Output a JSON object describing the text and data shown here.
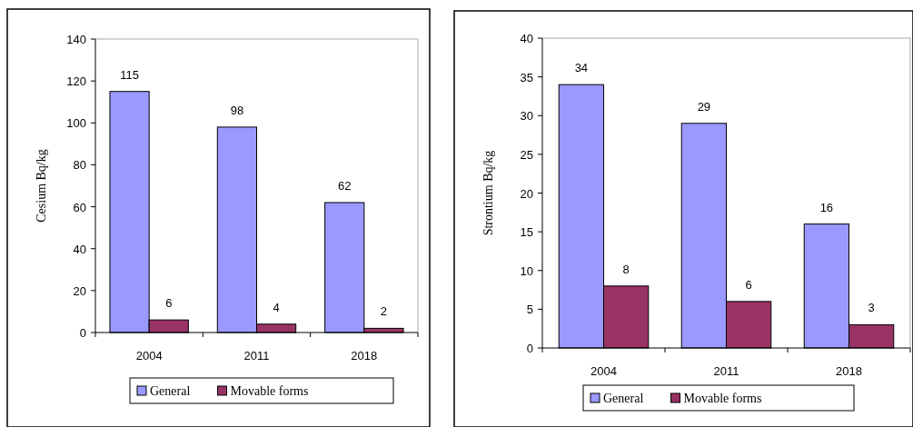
{
  "chart_data": [
    {
      "type": "bar",
      "ylabel": "Cesium Bq/kg",
      "categories": [
        "2004",
        "2011",
        "2018"
      ],
      "series": [
        {
          "name": "General",
          "color": "#9999ff",
          "values": [
            115,
            98,
            62
          ]
        },
        {
          "name": "Movable forms",
          "color": "#993366",
          "values": [
            6,
            4,
            2
          ]
        }
      ],
      "ylim": [
        0,
        140
      ],
      "yticks": [
        0,
        20,
        40,
        60,
        80,
        100,
        120,
        140
      ],
      "data_labels": true,
      "legend": "bottom",
      "grid": false
    },
    {
      "type": "bar",
      "ylabel": "Strontium Bq/kg",
      "categories": [
        "2004",
        "2011",
        "2018"
      ],
      "series": [
        {
          "name": "General",
          "color": "#9999ff",
          "values": [
            34,
            29,
            16
          ]
        },
        {
          "name": "Movable forms",
          "color": "#993366",
          "values": [
            8,
            6,
            3
          ]
        }
      ],
      "ylim": [
        0,
        40
      ],
      "yticks": [
        0,
        5,
        10,
        15,
        20,
        25,
        30,
        35,
        40
      ],
      "data_labels": true,
      "legend": "bottom",
      "grid": false
    }
  ]
}
